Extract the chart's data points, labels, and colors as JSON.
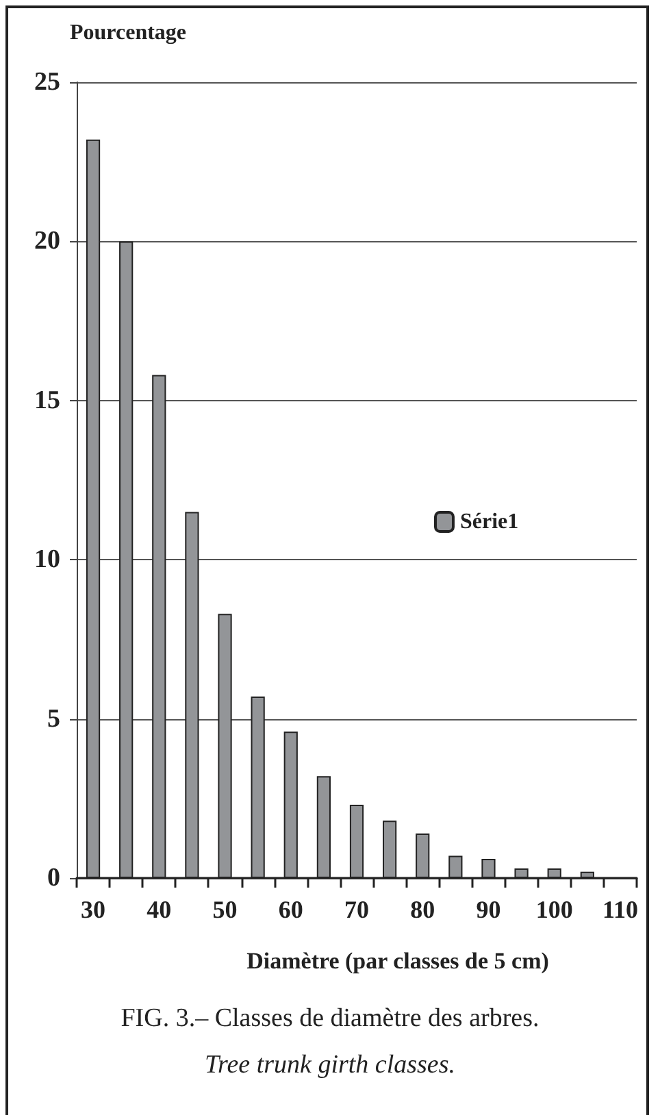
{
  "chart_data": {
    "type": "bar",
    "categories": [
      "30",
      null,
      "40",
      null,
      "50",
      null,
      "60",
      null,
      "70",
      null,
      "80",
      null,
      "90",
      null,
      "100",
      null,
      "110"
    ],
    "series": [
      {
        "name": "Série1",
        "color": "#939598",
        "values": [
          23.2,
          20,
          15.8,
          11.5,
          8.3,
          5.7,
          4.6,
          3.2,
          2.3,
          1.8,
          1.4,
          0.7,
          0.6,
          0.3,
          0.3,
          0.2,
          null
        ]
      }
    ],
    "xlabel": "Diamètre (par classes de 5 cm)",
    "ylabel": "Pourcentage",
    "ylim": [
      0,
      25
    ],
    "yticks": [
      0,
      5,
      10,
      15,
      20,
      25
    ],
    "grid": "y",
    "legend": "right",
    "annotations": [
      "FIG. 3.– Classes de diamètre des arbres.",
      "Tree trunk girth classes."
    ]
  }
}
